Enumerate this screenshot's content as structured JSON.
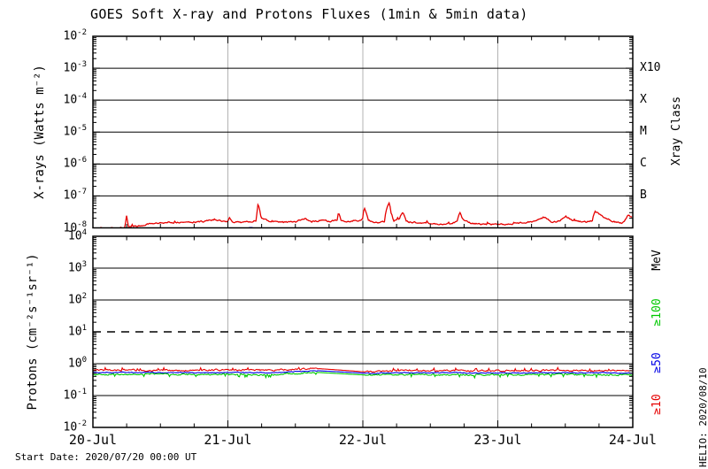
{
  "title": "GOES Soft X-ray and Protons Fluxes   (1min & 5min data)",
  "footer": {
    "start_date": "Start Date: 2020/07/20 00:00 UT",
    "credit": "HELIO: 2020/08/10"
  },
  "colors": {
    "axis": "#000000",
    "day_gridline": "#b3b3b3",
    "xray_trace": "#e60000",
    "proton_ge10": "#e60000",
    "proton_ge50": "#0000e6",
    "proton_ge100": "#00c800"
  },
  "x_axis": {
    "tick_labels": [
      "20-Jul",
      "21-Jul",
      "22-Jul",
      "23-Jul",
      "24-Jul"
    ],
    "span_days": 4,
    "minor_tick_interval_hours": 6
  },
  "chart_data": [
    {
      "type": "line",
      "name": "GOES Soft X-ray Flux",
      "ylabel": "X-rays (Watts m⁻²)",
      "right_axis_title": "Xray Class",
      "yscale": "log",
      "ylim": [
        1e-08,
        0.01
      ],
      "y_tick_exponents": [
        -2,
        -3,
        -4,
        -5,
        -6,
        -7,
        -8
      ],
      "grid": {
        "horizontal_decade_lines": "solid",
        "vertical_day_lines": "gray"
      },
      "xray_class_labels": [
        {
          "label": "X10",
          "flux": 0.001
        },
        {
          "label": "X",
          "flux": 0.0001
        },
        {
          "label": "M",
          "flux": 1e-05
        },
        {
          "label": "C",
          "flux": 1e-06
        },
        {
          "label": "B",
          "flux": 1e-07
        }
      ],
      "series": [
        {
          "name": "xray-long-channel",
          "color": "#e60000",
          "unit": "W m⁻²",
          "value_scale": 1e-08,
          "x_days": [
            0.2,
            0.24,
            0.25,
            0.26,
            0.32,
            0.4,
            0.48,
            0.55,
            0.62,
            0.7,
            0.78,
            0.85,
            0.9,
            0.96,
            1.0,
            1.01,
            1.03,
            1.1,
            1.17,
            1.21,
            1.225,
            1.245,
            1.3,
            1.4,
            1.5,
            1.57,
            1.62,
            1.7,
            1.75,
            1.81,
            1.82,
            1.84,
            1.9,
            1.97,
            2.0,
            2.01,
            2.04,
            2.1,
            2.16,
            2.195,
            2.21,
            2.23,
            2.27,
            2.295,
            2.32,
            2.4,
            2.5,
            2.6,
            2.7,
            2.72,
            2.74,
            2.8,
            2.9,
            3.0,
            3.1,
            3.2,
            3.3,
            3.34,
            3.4,
            3.46,
            3.5,
            3.55,
            3.65,
            3.7,
            3.72,
            3.78,
            3.85,
            3.92,
            3.95,
            3.97,
            4.0
          ],
          "y": [
            1.0,
            1.0,
            2.4,
            1.05,
            1.15,
            1.3,
            1.4,
            1.5,
            1.45,
            1.6,
            1.5,
            1.65,
            1.9,
            1.6,
            1.55,
            2.2,
            1.6,
            1.45,
            1.55,
            1.7,
            5.5,
            2.0,
            1.6,
            1.5,
            1.55,
            1.95,
            1.6,
            1.75,
            1.6,
            1.7,
            3.1,
            1.7,
            1.6,
            1.7,
            2.0,
            4.2,
            1.7,
            1.45,
            1.55,
            6.3,
            2.6,
            1.7,
            1.8,
            3.0,
            1.6,
            1.45,
            1.35,
            1.3,
            1.6,
            3.0,
            1.9,
            1.4,
            1.3,
            1.25,
            1.35,
            1.45,
            1.7,
            2.2,
            1.5,
            1.6,
            2.4,
            1.7,
            1.5,
            1.7,
            3.3,
            2.2,
            1.6,
            1.45,
            1.9,
            2.6,
            2.0
          ]
        },
        {
          "name": "xray-short-channel-sparse",
          "color": "#0000e6",
          "value_scale": 1e-08,
          "points": [
            [
              1.14,
              0.95
            ],
            [
              1.17,
              1.0
            ],
            [
              1.3,
              0.95
            ],
            [
              2.62,
              0.9
            ]
          ]
        }
      ],
      "sparse_leading_points": [
        [
          0.02,
          0.95
        ],
        [
          0.06,
          1.0
        ],
        [
          0.1,
          0.9
        ],
        [
          0.14,
          1.0
        ],
        [
          0.18,
          0.95
        ]
      ]
    },
    {
      "type": "line",
      "name": "GOES Proton Flux",
      "ylabel": "Protons (cm⁻²s⁻¹sr⁻¹)",
      "right_axis_title": "MeV",
      "yscale": "log",
      "ylim": [
        0.01,
        10000.0
      ],
      "y_tick_exponents": [
        4,
        3,
        2,
        1,
        0,
        -1,
        -2
      ],
      "grid": {
        "horizontal_decade_lines": "solid",
        "vertical_day_lines": "gray"
      },
      "threshold_line": {
        "value": 10,
        "style": "dashed"
      },
      "data_gap_days": [
        1.67,
        2.02
      ],
      "series": [
        {
          "name": "proton-ge10",
          "label": "≥10",
          "color": "#e60000",
          "unit": "cm⁻²s⁻¹sr⁻¹",
          "x_days": [
            0,
            0.3,
            0.7,
            1.0,
            1.3,
            1.67,
            2.02,
            2.3,
            2.7,
            3.0,
            3.4,
            3.7,
            4.0
          ],
          "y": [
            0.62,
            0.63,
            0.62,
            0.64,
            0.62,
            0.7,
            0.55,
            0.62,
            0.61,
            0.6,
            0.62,
            0.61,
            0.6
          ]
        },
        {
          "name": "proton-ge50",
          "label": "≥50",
          "color": "#0000e6",
          "unit": "cm⁻²s⁻¹sr⁻¹",
          "x_days": [
            0,
            0.3,
            0.7,
            1.0,
            1.3,
            1.67,
            2.02,
            2.3,
            2.7,
            3.0,
            3.4,
            3.7,
            4.0
          ],
          "y": [
            0.53,
            0.53,
            0.52,
            0.53,
            0.52,
            0.6,
            0.5,
            0.52,
            0.52,
            0.51,
            0.52,
            0.52,
            0.51
          ]
        },
        {
          "name": "proton-ge100",
          "label": "≥100",
          "color": "#00c800",
          "unit": "cm⁻²s⁻¹sr⁻¹",
          "x_days": [
            0,
            0.3,
            0.7,
            1.0,
            1.3,
            1.67,
            2.02,
            2.3,
            2.7,
            3.0,
            3.4,
            3.7,
            4.0
          ],
          "y": [
            0.46,
            0.47,
            0.46,
            0.46,
            0.45,
            0.53,
            0.44,
            0.46,
            0.45,
            0.45,
            0.46,
            0.45,
            0.44
          ]
        }
      ],
      "legend_order_top_to_bottom": [
        "≥100",
        "≥50",
        "≥10"
      ]
    }
  ]
}
